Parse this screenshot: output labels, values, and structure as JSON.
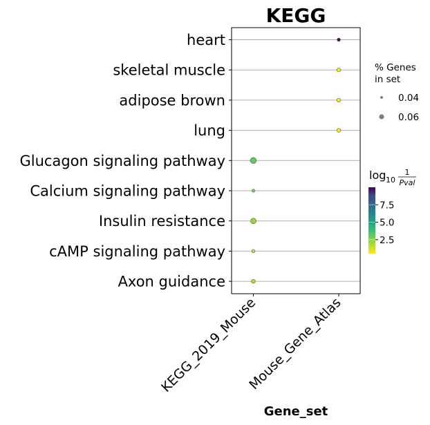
{
  "chart_data": {
    "type": "scatter",
    "title": "KEGG",
    "xlabel": "Gene_set",
    "ylabel": "",
    "x_categories": [
      "KEGG_2019_Mouse",
      "Mouse_Gene_Atlas"
    ],
    "y_categories": [
      "heart",
      "skeletal muscle",
      "adipose brown",
      "lung",
      "Glucagon signaling pathway",
      "Calcium signaling pathway",
      "Insulin resistance",
      "cAMP signaling pathway",
      "Axon guidance"
    ],
    "points": [
      {
        "term": "heart",
        "gene_set": "Mouse_Gene_Atlas",
        "log10_inv_pval": 9.8,
        "pct_genes": 0.045
      },
      {
        "term": "skeletal muscle",
        "gene_set": "Mouse_Gene_Atlas",
        "log10_inv_pval": 0.5,
        "pct_genes": 0.05
      },
      {
        "term": "adipose brown",
        "gene_set": "Mouse_Gene_Atlas",
        "log10_inv_pval": 0.5,
        "pct_genes": 0.05
      },
      {
        "term": "lung",
        "gene_set": "Mouse_Gene_Atlas",
        "log10_inv_pval": 0.5,
        "pct_genes": 0.05
      },
      {
        "term": "Glucagon signaling pathway",
        "gene_set": "KEGG_2019_Mouse",
        "log10_inv_pval": 2.8,
        "pct_genes": 0.07
      },
      {
        "term": "Calcium signaling pathway",
        "gene_set": "KEGG_2019_Mouse",
        "log10_inv_pval": 2.6,
        "pct_genes": 0.042
      },
      {
        "term": "Insulin resistance",
        "gene_set": "KEGG_2019_Mouse",
        "log10_inv_pval": 2.0,
        "pct_genes": 0.065
      },
      {
        "term": "cAMP signaling pathway",
        "gene_set": "KEGG_2019_Mouse",
        "log10_inv_pval": 1.2,
        "pct_genes": 0.045
      },
      {
        "term": "Axon guidance",
        "gene_set": "KEGG_2019_Mouse",
        "log10_inv_pval": 1.5,
        "pct_genes": 0.05
      }
    ],
    "size_legend": {
      "title_line1": "% Genes",
      "title_line2": "in set",
      "entries": [
        {
          "label": "0.04",
          "value": 0.04
        },
        {
          "label": "0.06",
          "value": 0.06
        }
      ]
    },
    "colorbar": {
      "title_prefix": "log",
      "title_sub": "10",
      "title_num": "1",
      "title_den": "Pval",
      "colormap": "viridis_r",
      "range": [
        0.5,
        10
      ],
      "ticks": [
        {
          "label": "2.5",
          "value": 2.5
        },
        {
          "label": "5.0",
          "value": 5.0
        },
        {
          "label": "7.5",
          "value": 7.5
        }
      ]
    },
    "grid": "horizontal",
    "legend_position": "right"
  }
}
